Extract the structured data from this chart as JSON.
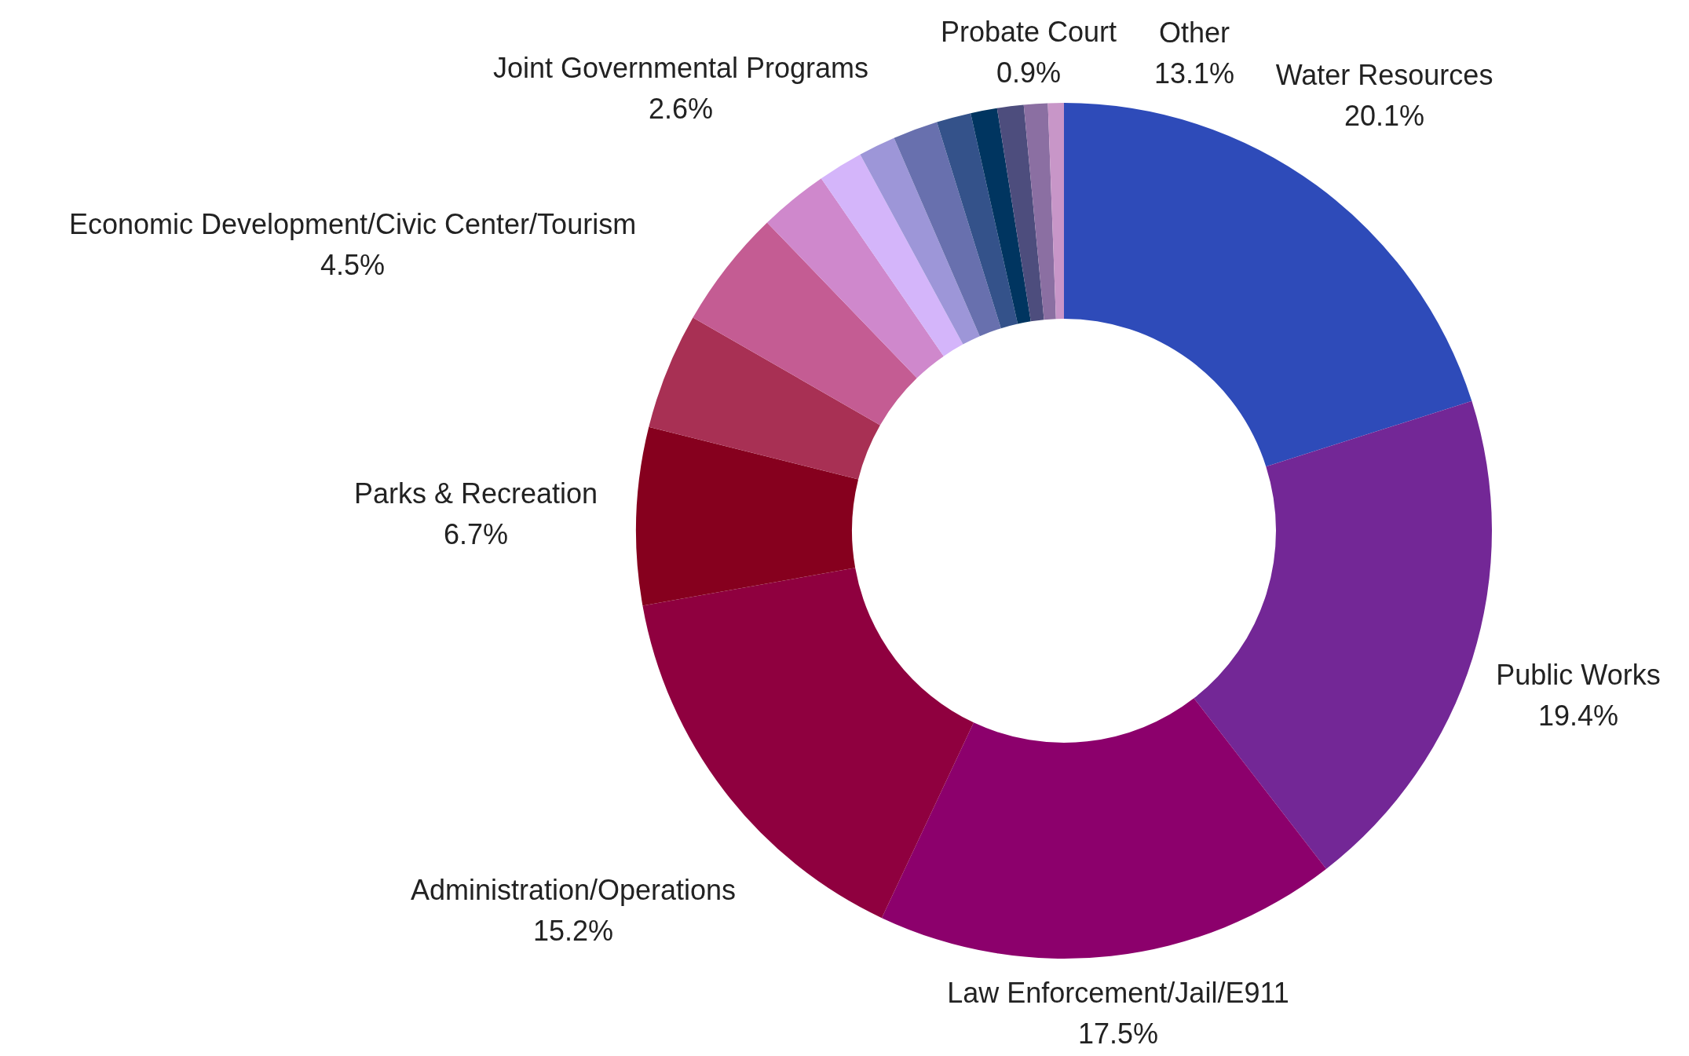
{
  "chart_data": {
    "type": "donut",
    "categories": [
      "Water Resources",
      "Public Works",
      "Law Enforcement/Jail/E911",
      "Administration/Operations",
      "Parks & Recreation",
      null,
      "Economic Development/Civic Center/Tourism",
      "Joint Governmental Programs",
      null,
      null,
      null,
      null,
      null,
      null,
      "Probate Court",
      null
    ],
    "values": [
      20.1,
      19.4,
      17.5,
      15.2,
      6.7,
      4.4,
      4.5,
      2.6,
      1.7,
      1.4,
      1.7,
      1.3,
      1.0,
      1.0,
      0.9,
      0.6
    ],
    "value_labels": [
      "20.1%",
      "19.4%",
      "17.5%",
      "15.2%",
      "6.7%",
      null,
      "4.5%",
      "2.6%",
      null,
      null,
      null,
      null,
      null,
      null,
      "0.9%",
      null
    ],
    "colors": [
      "#2e4bb9",
      "#732796",
      "#8c006c",
      "#8f003f",
      "#86001e",
      "#a83054",
      "#c45c93",
      "#cf88cc",
      "#d4b5fa",
      "#9d96d8",
      "#6870ae",
      "#34528a",
      "#003560",
      "#4d4d7d",
      "#8b6fa2",
      "#c896c8"
    ],
    "annotations": [
      "Other\n13.1%"
    ],
    "legend": false
  }
}
